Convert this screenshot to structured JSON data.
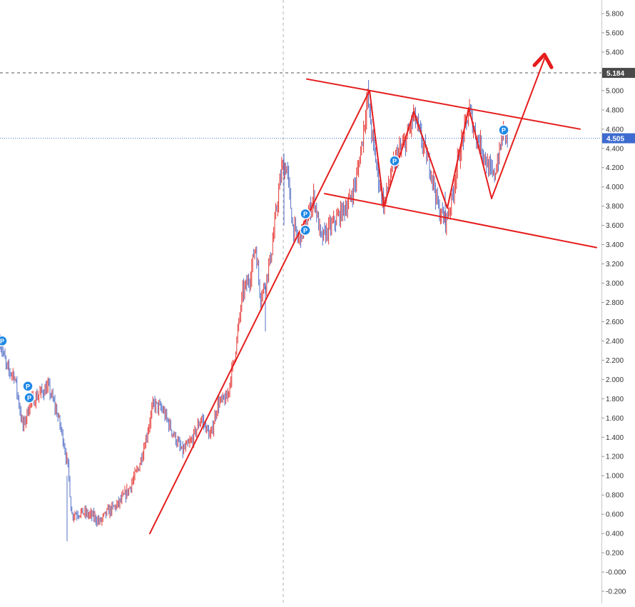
{
  "chart_data": {
    "type": "candlestick",
    "y_axis": {
      "position": "right",
      "ylim": [
        -0.2,
        5.8
      ],
      "ticks": [
        "5.800",
        "5.600",
        "5.400",
        "5.200",
        "5.000",
        "4.800",
        "4.600",
        "4.400",
        "4.200",
        "4.000",
        "3.800",
        "3.600",
        "3.400",
        "3.200",
        "3.000",
        "2.800",
        "2.600",
        "2.400",
        "2.200",
        "2.000",
        "1.800",
        "1.600",
        "1.400",
        "1.200",
        "1.000",
        "0.800",
        "0.600",
        "0.400",
        "0.200",
        "-0.000",
        "-0.200"
      ]
    },
    "price_labels": [
      {
        "label": "5.184",
        "value": 5.184,
        "line": "dashed",
        "color": "#555555"
      },
      {
        "label": "4.505",
        "value": 4.505,
        "line": "dotted",
        "color": "#3a6fd8"
      }
    ],
    "price_path": [
      [
        0,
        2.4
      ],
      [
        10,
        2.1
      ],
      [
        20,
        2.05
      ],
      [
        32,
        1.5
      ],
      [
        42,
        1.75
      ],
      [
        55,
        1.85
      ],
      [
        68,
        1.92
      ],
      [
        80,
        1.65
      ],
      [
        88,
        1.4
      ],
      [
        96,
        1.05
      ],
      [
        100,
        0.6
      ],
      [
        115,
        0.62
      ],
      [
        130,
        0.58
      ],
      [
        140,
        0.52
      ],
      [
        150,
        0.62
      ],
      [
        165,
        0.7
      ],
      [
        180,
        0.85
      ],
      [
        195,
        1.1
      ],
      [
        205,
        1.4
      ],
      [
        215,
        1.75
      ],
      [
        228,
        1.68
      ],
      [
        242,
        1.45
      ],
      [
        255,
        1.25
      ],
      [
        268,
        1.35
      ],
      [
        282,
        1.6
      ],
      [
        295,
        1.4
      ],
      [
        305,
        1.75
      ],
      [
        318,
        1.8
      ],
      [
        330,
        2.3
      ],
      [
        340,
        2.9
      ],
      [
        350,
        3.05
      ],
      [
        358,
        3.4
      ],
      [
        365,
        2.85
      ],
      [
        372,
        3.0
      ],
      [
        380,
        3.3
      ],
      [
        388,
        3.8
      ],
      [
        395,
        4.2
      ],
      [
        402,
        4.2
      ],
      [
        410,
        3.6
      ],
      [
        418,
        3.45
      ],
      [
        428,
        3.6
      ],
      [
        440,
        3.9
      ],
      [
        450,
        3.45
      ],
      [
        460,
        3.55
      ],
      [
        470,
        3.65
      ],
      [
        480,
        3.75
      ],
      [
        490,
        3.85
      ],
      [
        500,
        4.1
      ],
      [
        508,
        4.5
      ],
      [
        515,
        4.95
      ],
      [
        522,
        4.5
      ],
      [
        530,
        4.1
      ],
      [
        538,
        3.8
      ],
      [
        548,
        4.15
      ],
      [
        558,
        4.35
      ],
      [
        568,
        4.45
      ],
      [
        580,
        4.75
      ],
      [
        592,
        4.45
      ],
      [
        605,
        4.15
      ],
      [
        615,
        3.75
      ],
      [
        625,
        3.65
      ],
      [
        633,
        3.85
      ],
      [
        640,
        4.2
      ],
      [
        650,
        4.55
      ],
      [
        658,
        4.8
      ],
      [
        666,
        4.55
      ],
      [
        676,
        4.4
      ],
      [
        684,
        4.2
      ],
      [
        692,
        4.1
      ],
      [
        700,
        4.35
      ],
      [
        706,
        4.6
      ],
      [
        712,
        4.5
      ]
    ],
    "markers": [
      {
        "label": "P",
        "x": 3,
        "y": 2.4
      },
      {
        "label": "P",
        "x": 39,
        "y": 1.93
      },
      {
        "label": "P",
        "x": 41,
        "y": 1.81
      },
      {
        "label": "P",
        "x": 428,
        "y": 3.72
      },
      {
        "label": "P",
        "x": 428,
        "y": 3.55
      },
      {
        "label": "P",
        "x": 553,
        "y": 4.27
      },
      {
        "label": "P",
        "x": 706,
        "y": 4.59
      }
    ],
    "annotations": {
      "lines": [
        {
          "from": [
            210,
            0.4
          ],
          "to": [
            518,
            5.0
          ]
        },
        {
          "from": [
            430,
            5.12
          ],
          "to": [
            813,
            4.6
          ]
        },
        {
          "from": [
            455,
            3.93
          ],
          "to": [
            836,
            3.37
          ]
        },
        {
          "from": [
            518,
            5.0
          ],
          "to": [
            538,
            3.8
          ]
        },
        {
          "from": [
            538,
            3.8
          ],
          "to": [
            580,
            4.78
          ]
        },
        {
          "from": [
            580,
            4.78
          ],
          "to": [
            627,
            3.78
          ]
        },
        {
          "from": [
            627,
            3.78
          ],
          "to": [
            657,
            4.82
          ]
        },
        {
          "from": [
            657,
            4.82
          ],
          "to": [
            689,
            3.88
          ]
        },
        {
          "from": [
            689,
            3.88
          ],
          "to": [
            763,
            5.33
          ]
        }
      ],
      "arrow_tip": [
        763,
        5.33
      ],
      "color": "#e51d1d"
    },
    "grid": false,
    "crosshair_x": 397
  },
  "colors": {
    "up_candle": "#e53935",
    "down_candle": "#5470c6",
    "drawing": "#e51d1d",
    "marker": "#1e88e5"
  }
}
